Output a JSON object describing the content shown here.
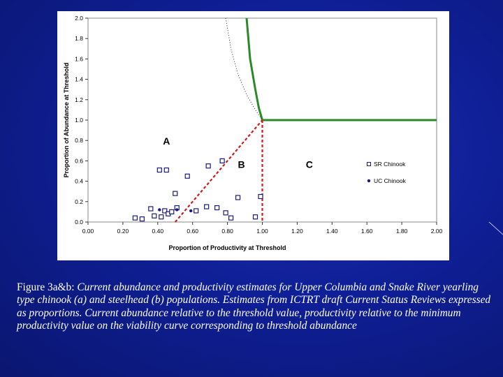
{
  "caption": {
    "lead": "Figure 3a&b: ",
    "body": "Current abundance and productivity estimates for Upper Columbia and Snake River yearling type chinook (a) and steelhead (b)  populations.  Estimates from ICTRT draft Current Status Reviews expressed as proportions.  Current abundance relative to the threshold value, productivity relative to the minimum productivity value on the viability curve corresponding to threshold abundance"
  },
  "chart_data": {
    "type": "scatter",
    "xlabel": "Proportion of Productivity at Threshold",
    "ylabel": "Proportion of Abundance at Threshold",
    "xlim": [
      0,
      2
    ],
    "ylim": [
      0,
      2
    ],
    "x_ticks": [
      "0.00",
      "0.20",
      "0.40",
      "0.60",
      "0.80",
      "1.00",
      "1.20",
      "1.40",
      "1.60",
      "1.80",
      "2.00"
    ],
    "y_ticks": [
      "0.0",
      "0.2",
      "0.4",
      "0.6",
      "0.8",
      "1.0",
      "1.2",
      "1.4",
      "1.6",
      "1.8",
      "2.0"
    ],
    "grid": false,
    "legend_position": "right",
    "region_labels": [
      {
        "text": "A",
        "x": 0.45,
        "y": 0.76
      },
      {
        "text": "B",
        "x": 0.88,
        "y": 0.53
      },
      {
        "text": "C",
        "x": 1.27,
        "y": 0.53
      }
    ],
    "series": [
      {
        "name": "SR Chinook",
        "marker": "open-square",
        "color": "#1a1a80",
        "points": [
          [
            0.27,
            0.04
          ],
          [
            0.31,
            0.03
          ],
          [
            0.36,
            0.13
          ],
          [
            0.38,
            0.06
          ],
          [
            0.41,
            0.51
          ],
          [
            0.42,
            0.05
          ],
          [
            0.44,
            0.11
          ],
          [
            0.45,
            0.51
          ],
          [
            0.46,
            0.08
          ],
          [
            0.48,
            0.1
          ],
          [
            0.5,
            0.28
          ],
          [
            0.51,
            0.14
          ],
          [
            0.57,
            0.45
          ],
          [
            0.62,
            0.11
          ],
          [
            0.68,
            0.15
          ],
          [
            0.69,
            0.55
          ],
          [
            0.74,
            0.14
          ],
          [
            0.77,
            0.6
          ],
          [
            0.79,
            0.09
          ],
          [
            0.82,
            0.04
          ],
          [
            0.86,
            0.24
          ],
          [
            0.96,
            0.05
          ],
          [
            0.99,
            0.25
          ]
        ]
      },
      {
        "name": "UC Chinook",
        "marker": "filled-circle",
        "color": "#1a1a80",
        "points": [
          [
            0.41,
            0.12
          ],
          [
            0.51,
            0.12
          ],
          [
            0.59,
            0.11
          ]
        ]
      }
    ],
    "lines": [
      {
        "name": "viability-curve",
        "style": "solid",
        "color": "#2a8a2a",
        "points": [
          [
            0.91,
            2.0
          ],
          [
            0.93,
            1.6
          ],
          [
            0.96,
            1.3
          ],
          [
            0.98,
            1.12
          ],
          [
            1.0,
            1.0
          ],
          [
            2.0,
            1.0
          ]
        ]
      },
      {
        "name": "dotted-curve",
        "style": "dotted",
        "color": "#222222",
        "points": [
          [
            0.79,
            2.0
          ],
          [
            0.82,
            1.7
          ],
          [
            0.86,
            1.45
          ],
          [
            0.91,
            1.25
          ],
          [
            0.96,
            1.1
          ],
          [
            1.0,
            1.0
          ]
        ]
      },
      {
        "name": "diagonal-boundary",
        "style": "dashed",
        "color": "#d11a1a",
        "points": [
          [
            0.5,
            0.0
          ],
          [
            1.0,
            1.0
          ]
        ]
      },
      {
        "name": "vertical-boundary",
        "style": "dashed",
        "color": "#d11a1a",
        "points": [
          [
            1.0,
            1.0
          ],
          [
            1.0,
            0.0
          ]
        ]
      }
    ]
  }
}
